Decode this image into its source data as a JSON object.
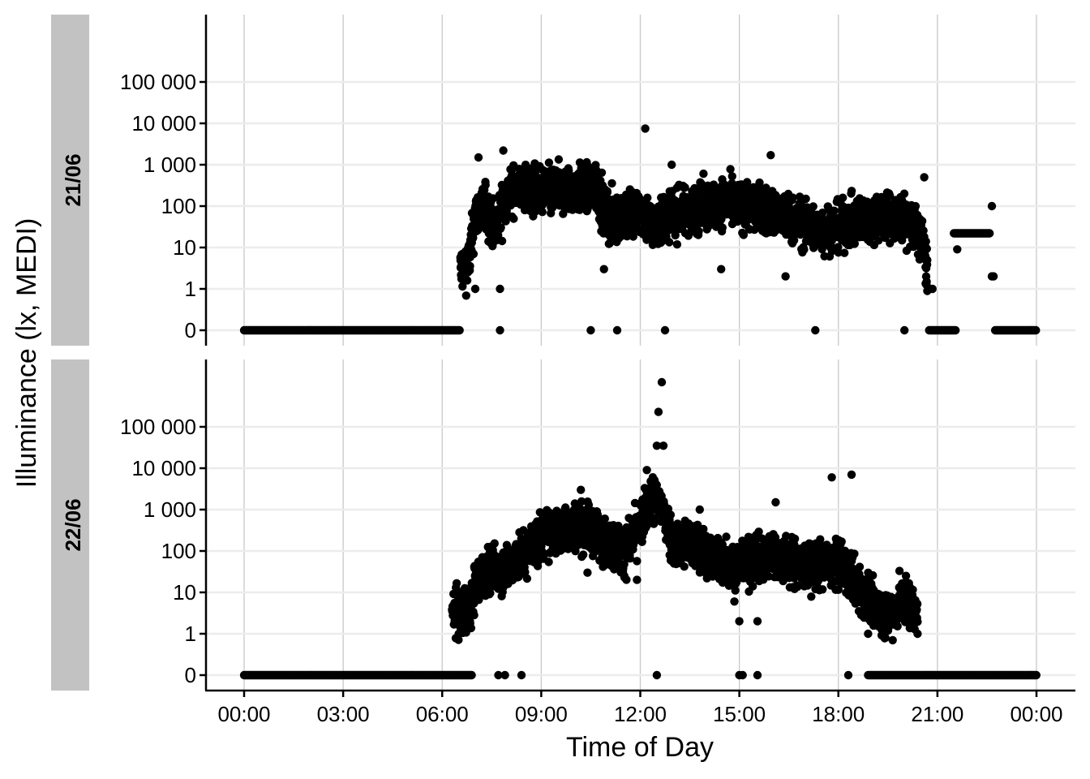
{
  "chart_data": {
    "type": "scatter",
    "xlabel": "Time of Day",
    "ylabel": "Illuminance (lx, MEDI)",
    "x_unit": "hours",
    "xlim": [
      0,
      24
    ],
    "x_ticks": [
      0,
      3,
      6,
      9,
      12,
      15,
      18,
      21,
      24
    ],
    "x_tick_labels": [
      "00:00",
      "03:00",
      "06:00",
      "09:00",
      "12:00",
      "15:00",
      "18:00",
      "21:00",
      "00:00"
    ],
    "y_scale": "symlog",
    "y_ticks": [
      0,
      1,
      10,
      100,
      1000,
      10000,
      100000
    ],
    "y_tick_labels": [
      "0",
      "1",
      "10",
      "100",
      "1 000",
      "10 000",
      "100 000"
    ],
    "grid": true,
    "panels": [
      {
        "label": "21/06",
        "zero_runs": [
          [
            0.0,
            6.55
          ],
          [
            20.75,
            21.55
          ],
          [
            22.75,
            24.0
          ]
        ],
        "zero_points": [
          7.75,
          10.5,
          11.3,
          12.75,
          17.3,
          20.0
        ],
        "profile": [
          {
            "t": 6.55,
            "v": 3
          },
          {
            "t": 6.8,
            "v": 4
          },
          {
            "t": 7.0,
            "v": 60
          },
          {
            "t": 7.3,
            "v": 90
          },
          {
            "t": 7.6,
            "v": 25
          },
          {
            "t": 7.9,
            "v": 150
          },
          {
            "t": 8.2,
            "v": 280
          },
          {
            "t": 9.0,
            "v": 230
          },
          {
            "t": 10.0,
            "v": 250
          },
          {
            "t": 10.7,
            "v": 280
          },
          {
            "t": 10.9,
            "v": 60
          },
          {
            "t": 11.5,
            "v": 60
          },
          {
            "t": 12.0,
            "v": 70
          },
          {
            "t": 12.5,
            "v": 30
          },
          {
            "t": 12.8,
            "v": 60
          },
          {
            "t": 13.5,
            "v": 80
          },
          {
            "t": 14.5,
            "v": 120
          },
          {
            "t": 15.5,
            "v": 90
          },
          {
            "t": 16.5,
            "v": 50
          },
          {
            "t": 17.5,
            "v": 25
          },
          {
            "t": 18.5,
            "v": 40
          },
          {
            "t": 19.3,
            "v": 60
          },
          {
            "t": 20.0,
            "v": 50
          },
          {
            "t": 20.5,
            "v": 20
          },
          {
            "t": 20.7,
            "v": 3
          }
        ],
        "plateau": {
          "t0": 21.5,
          "t1": 22.6,
          "v": 22
        },
        "extremes": [
          {
            "t": 7.1,
            "v": 1500
          },
          {
            "t": 7.85,
            "v": 2200
          },
          {
            "t": 12.15,
            "v": 7500
          },
          {
            "t": 12.95,
            "v": 1000
          },
          {
            "t": 15.95,
            "v": 1700
          },
          {
            "t": 7.0,
            "v": 1
          },
          {
            "t": 7.75,
            "v": 1
          },
          {
            "t": 20.6,
            "v": 500
          },
          {
            "t": 16.4,
            "v": 2
          },
          {
            "t": 21.6,
            "v": 9
          },
          {
            "t": 10.9,
            "v": 3
          },
          {
            "t": 14.45,
            "v": 3
          },
          {
            "t": 22.65,
            "v": 100
          },
          {
            "t": 22.65,
            "v": 2
          },
          {
            "t": 22.7,
            "v": 2
          },
          {
            "t": 20.75,
            "v": 1
          },
          {
            "t": 20.85,
            "v": 1
          }
        ]
      },
      {
        "label": "22/06",
        "zero_runs": [
          [
            0.0,
            6.9
          ],
          [
            18.9,
            24.0
          ]
        ],
        "zero_points": [
          7.7,
          7.9,
          8.4,
          12.5,
          15.0,
          15.1,
          15.55,
          18.3
        ],
        "profile": [
          {
            "t": 6.3,
            "v": 3
          },
          {
            "t": 6.8,
            "v": 3
          },
          {
            "t": 7.0,
            "v": 15
          },
          {
            "t": 7.5,
            "v": 40
          },
          {
            "t": 8.0,
            "v": 40
          },
          {
            "t": 8.5,
            "v": 80
          },
          {
            "t": 9.0,
            "v": 250
          },
          {
            "t": 9.5,
            "v": 280
          },
          {
            "t": 10.0,
            "v": 400
          },
          {
            "t": 10.5,
            "v": 350
          },
          {
            "t": 11.0,
            "v": 150
          },
          {
            "t": 11.5,
            "v": 100
          },
          {
            "t": 12.0,
            "v": 400
          },
          {
            "t": 12.3,
            "v": 2000
          },
          {
            "t": 12.6,
            "v": 1500
          },
          {
            "t": 13.0,
            "v": 150
          },
          {
            "t": 13.5,
            "v": 150
          },
          {
            "t": 14.0,
            "v": 80
          },
          {
            "t": 15.0,
            "v": 50
          },
          {
            "t": 16.0,
            "v": 80
          },
          {
            "t": 17.0,
            "v": 40
          },
          {
            "t": 18.0,
            "v": 50
          },
          {
            "t": 18.5,
            "v": 20
          },
          {
            "t": 19.0,
            "v": 5
          },
          {
            "t": 19.5,
            "v": 3
          },
          {
            "t": 20.0,
            "v": 8
          },
          {
            "t": 20.4,
            "v": 3
          }
        ],
        "plateau": null,
        "extremes": [
          {
            "t": 12.65,
            "v": 1200000
          },
          {
            "t": 12.55,
            "v": 230000
          },
          {
            "t": 12.5,
            "v": 35000
          },
          {
            "t": 12.7,
            "v": 35000
          },
          {
            "t": 12.2,
            "v": 9000
          },
          {
            "t": 17.8,
            "v": 6000
          },
          {
            "t": 18.4,
            "v": 7000
          },
          {
            "t": 10.2,
            "v": 3000
          },
          {
            "t": 16.1,
            "v": 1500
          },
          {
            "t": 13.8,
            "v": 1000
          },
          {
            "t": 10.4,
            "v": 30
          },
          {
            "t": 11.9,
            "v": 20
          },
          {
            "t": 15.0,
            "v": 2
          },
          {
            "t": 15.55,
            "v": 2
          },
          {
            "t": 14.85,
            "v": 6
          },
          {
            "t": 6.5,
            "v": 1
          },
          {
            "t": 20.4,
            "v": 1
          },
          {
            "t": 18.9,
            "v": 1
          }
        ]
      }
    ]
  }
}
